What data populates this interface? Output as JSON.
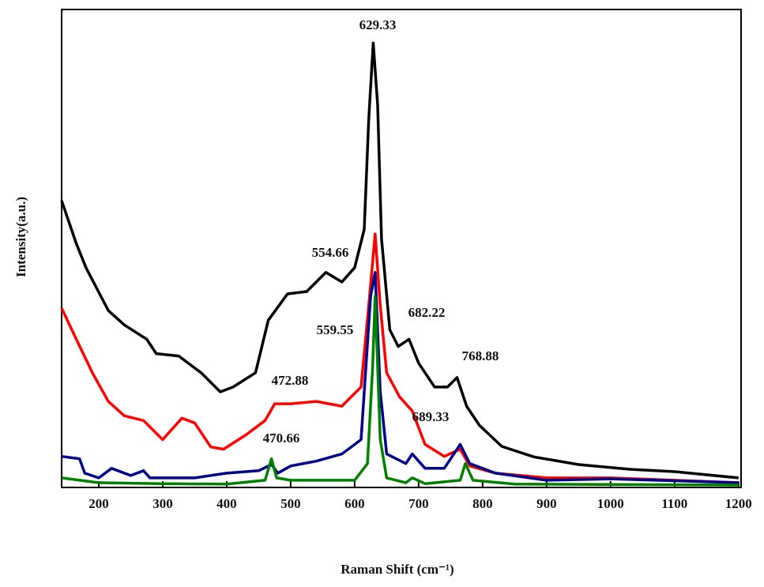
{
  "chart_data": {
    "type": "line",
    "xlabel": "Raman Shift (cm⁻¹)",
    "ylabel": "Intensity(a.u.)",
    "xlim": [
      142,
      1204
    ],
    "ylim": [
      0,
      100
    ],
    "xticks": [
      200,
      300,
      400,
      500,
      600,
      700,
      800,
      900,
      1000,
      1100,
      1200
    ],
    "series": [
      {
        "color": "#000000",
        "x": [
          142,
          165,
          180,
          215,
          240,
          275,
          290,
          325,
          360,
          390,
          410,
          445,
          465,
          495,
          525,
          555,
          580,
          600,
          615,
          622,
          629,
          636,
          642,
          655,
          668,
          685,
          700,
          725,
          745,
          760,
          775,
          795,
          830,
          880,
          950,
          1030,
          1100,
          1200
        ],
        "values": [
          60,
          51,
          46,
          37,
          34,
          31,
          28,
          27.5,
          24,
          20,
          21,
          24,
          35,
          40.5,
          41,
          45,
          43,
          46,
          54,
          77,
          93,
          80,
          52,
          33,
          29.5,
          31,
          26,
          21,
          21,
          23,
          17,
          13,
          8.6,
          6.4,
          4.8,
          3.8,
          3.3,
          2
        ]
      },
      {
        "color": "#ff0000",
        "x": [
          142,
          165,
          190,
          215,
          240,
          270,
          300,
          330,
          350,
          375,
          395,
          430,
          460,
          475,
          500,
          540,
          580,
          610,
          622,
          632,
          640,
          650,
          670,
          690,
          710,
          740,
          765,
          780,
          820,
          900,
          1000,
          1100,
          1200
        ],
        "values": [
          37.5,
          31,
          24,
          18,
          15,
          14,
          10,
          14.5,
          13.5,
          8.5,
          8,
          11,
          14,
          17.5,
          17.5,
          18,
          17,
          21,
          38,
          53,
          38,
          24,
          19,
          16,
          9,
          6.5,
          8,
          4.5,
          3,
          2,
          2,
          1.5,
          1
        ]
      },
      {
        "color": "#00008b",
        "x": [
          142,
          170,
          178,
          200,
          220,
          250,
          270,
          280,
          350,
          400,
          450,
          470,
          480,
          500,
          540,
          580,
          610,
          625,
          632,
          640,
          650,
          680,
          690,
          710,
          740,
          765,
          780,
          820,
          900,
          1000,
          1200
        ],
        "values": [
          6.5,
          6,
          3,
          2,
          4,
          2.5,
          3.5,
          2,
          2,
          3,
          3.5,
          4.8,
          3,
          4.5,
          5.5,
          7,
          10,
          40,
          45,
          20,
          7,
          5,
          7,
          4,
          4,
          9,
          5,
          3,
          1.5,
          1.8,
          1
        ]
      },
      {
        "color": "#008000",
        "x": [
          142,
          200,
          300,
          400,
          460,
          470,
          478,
          500,
          600,
          620,
          628,
          632,
          640,
          650,
          680,
          690,
          710,
          765,
          773,
          785,
          850,
          1200
        ],
        "values": [
          2,
          1,
          0.8,
          0.7,
          1.5,
          6,
          2,
          1.5,
          1.5,
          5,
          25,
          40,
          10,
          2,
          1,
          2,
          0.8,
          1.5,
          5,
          1.5,
          0.7,
          0.5
        ]
      }
    ],
    "annotations": [
      "629.33",
      "554.66",
      "682.22",
      "559.55",
      "768.88",
      "472.88",
      "689.33",
      "470.66"
    ]
  }
}
